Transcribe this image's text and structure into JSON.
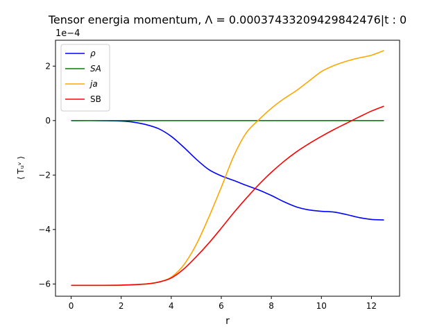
{
  "chart_data": {
    "type": "line",
    "title": "Tensor energia momentum, Λ = 0.0003743320942984247​6|t : 0",
    "xlabel": "r",
    "ylabel": "⟨ Tᵤᵛ ⟩",
    "y_multiplier_label": "1e−4",
    "xlim": [
      -0.625,
      13.125
    ],
    "ylim": [
      -6.45,
      2.95
    ],
    "x_ticks": [
      0,
      2,
      4,
      6,
      8,
      10,
      12
    ],
    "x_tick_labels": [
      "0",
      "2",
      "4",
      "6",
      "8",
      "10",
      "12"
    ],
    "y_ticks": [
      -6,
      -4,
      -2,
      0,
      2
    ],
    "y_tick_labels": [
      "−6",
      "−4",
      "−2",
      "0",
      "2"
    ],
    "legend_position": "top-left",
    "grid": false,
    "series": [
      {
        "name": "ρ",
        "color": "#0000ff",
        "x": [
          0,
          1,
          2,
          2.5,
          3,
          3.5,
          4,
          4.5,
          5,
          5.5,
          6,
          6.5,
          7,
          7.5,
          8,
          8.5,
          9,
          9.5,
          10,
          10.5,
          11,
          11.5,
          12,
          12.5
        ],
        "y": [
          0,
          0,
          -0.02,
          -0.06,
          -0.15,
          -0.3,
          -0.58,
          -0.98,
          -1.42,
          -1.8,
          -2.03,
          -2.2,
          -2.38,
          -2.55,
          -2.75,
          -2.98,
          -3.17,
          -3.28,
          -3.33,
          -3.36,
          -3.45,
          -3.56,
          -3.63,
          -3.65
        ]
      },
      {
        "name": "SA",
        "color": "#008000",
        "x": [
          0,
          12.5
        ],
        "y": [
          0,
          0
        ]
      },
      {
        "name": "ja",
        "color": "#ffa500",
        "x": [
          0,
          1,
          2,
          3,
          3.5,
          4,
          4.5,
          5,
          5.5,
          6,
          6.5,
          7,
          7.5,
          8,
          8.5,
          9,
          9.5,
          10,
          10.5,
          11,
          11.5,
          12,
          12.5
        ],
        "y": [
          -6.05,
          -6.05,
          -6.05,
          -6.0,
          -5.93,
          -5.75,
          -5.3,
          -4.55,
          -3.55,
          -2.45,
          -1.3,
          -0.45,
          0.03,
          0.45,
          0.8,
          1.1,
          1.45,
          1.8,
          2.02,
          2.18,
          2.3,
          2.4,
          2.57
        ]
      },
      {
        "name": "SB",
        "color": "#ff0000",
        "x": [
          0,
          1,
          2,
          3,
          3.5,
          4,
          4.5,
          5,
          5.5,
          6,
          6.5,
          7,
          7.5,
          8,
          8.5,
          9,
          9.5,
          10,
          10.5,
          11,
          11.5,
          12,
          12.5
        ],
        "y": [
          -6.05,
          -6.05,
          -6.04,
          -6.0,
          -5.93,
          -5.78,
          -5.45,
          -5.0,
          -4.5,
          -3.95,
          -3.38,
          -2.85,
          -2.35,
          -1.9,
          -1.5,
          -1.15,
          -0.85,
          -0.58,
          -0.33,
          -0.1,
          0.13,
          0.35,
          0.53
        ]
      }
    ]
  }
}
